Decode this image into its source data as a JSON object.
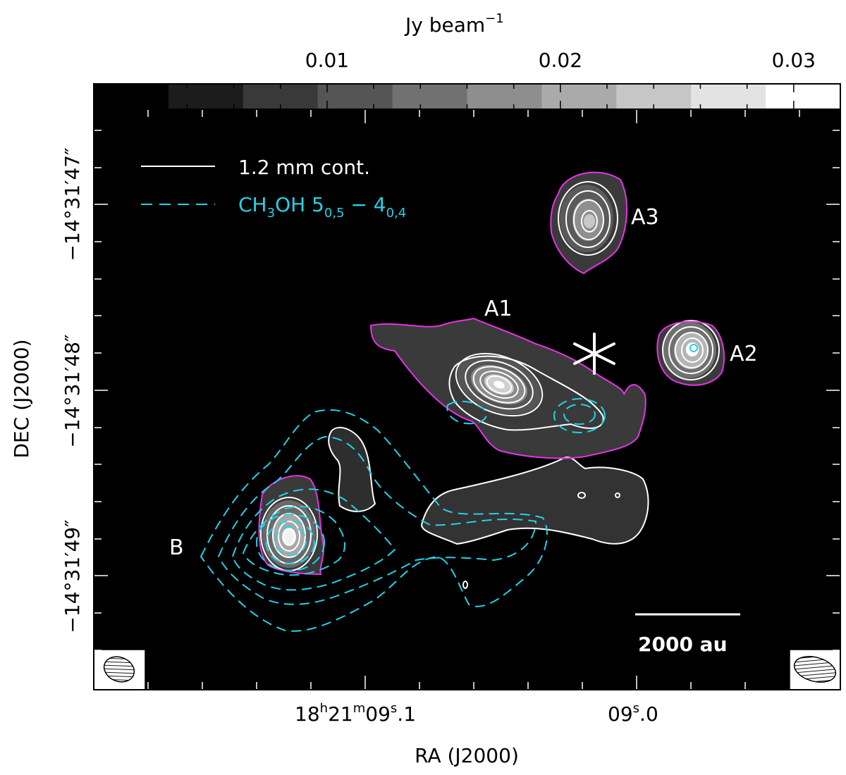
{
  "chart_data": {
    "type": "heatmap",
    "title": "",
    "colorbar": {
      "label_main": "Jy beam",
      "label_exp": "−1",
      "range": [
        0.0,
        0.032
      ],
      "ticks": [
        {
          "value": 0.01,
          "label": "0.01"
        },
        {
          "value": 0.02,
          "label": "0.02"
        },
        {
          "value": 0.03,
          "label": "0.03"
        }
      ],
      "minor_step": 0.002,
      "levels": 10
    },
    "xaxis": {
      "label": "RA (J2000)",
      "ticks": [
        {
          "hh": "18",
          "mm": "21",
          "ss": "09",
          "frac": "1",
          "pos": 0.36,
          "full": true
        },
        {
          "ss": "09",
          "frac": "0",
          "pos": 0.73,
          "full": false
        }
      ]
    },
    "yaxis": {
      "label": "DEC (J2000)",
      "ticks": [
        {
          "label": "−14°31′47″",
          "arcsec": 47
        },
        {
          "label": "−14°31′48″",
          "arcsec": 48
        },
        {
          "label": "−14°31′49″",
          "arcsec": 49
        }
      ]
    },
    "legend": {
      "placement": "top-left",
      "items": [
        {
          "label": "1.2 mm cont.",
          "style": "solid",
          "color": "#ffffff"
        },
        {
          "label_parts": [
            "CH",
            "3",
            "OH 5",
            "0,5",
            " − 4",
            "0,4"
          ],
          "style": "dashed",
          "color": "#22d3e6"
        }
      ]
    },
    "sources": [
      {
        "name": "A1"
      },
      {
        "name": "A2"
      },
      {
        "name": "A3"
      },
      {
        "name": "B"
      }
    ],
    "scalebar": {
      "label": "2000 au"
    },
    "marker": {
      "symbol": "asterisk"
    },
    "colors": {
      "continuum_contour": "#ffffff",
      "outer_contour": "#e633e6",
      "methanol_contour": "#22d3e6",
      "background": "#000000"
    }
  }
}
